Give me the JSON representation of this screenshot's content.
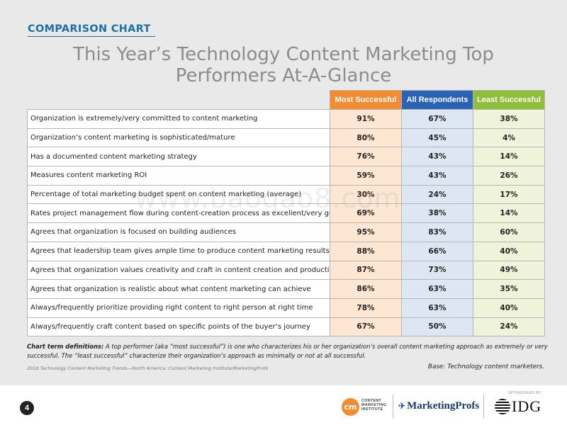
{
  "header": {
    "section_label": "COMPARISON CHART",
    "title": "This Year’s Technology Content Marketing Top Performers At-A-Glance"
  },
  "table": {
    "columns": [
      "Most Successful",
      "All Respondents",
      "Least Successful"
    ],
    "column_colors": {
      "most_successful": "#f28c33",
      "all_respondents": "#2a63b5",
      "least_successful": "#8fbe3a"
    },
    "rows": [
      {
        "statement": "Organization is extremely/very committed to content marketing",
        "most": "91%",
        "all": "67%",
        "least": "38%"
      },
      {
        "statement": "Organization’s content marketing is sophisticated/mature",
        "most": "80%",
        "all": "45%",
        "least": "4%"
      },
      {
        "statement": "Has a documented content marketing strategy",
        "most": "76%",
        "all": "43%",
        "least": "14%"
      },
      {
        "statement": "Measures content marketing ROI",
        "most": "59%",
        "all": "43%",
        "least": "26%"
      },
      {
        "statement": "Percentage of total marketing budget spent on content marketing (average)",
        "most": "30%",
        "all": "24%",
        "least": "17%"
      },
      {
        "statement": "Rates project management flow during content-creation process as excellent/very good",
        "most": "69%",
        "all": "38%",
        "least": "14%"
      },
      {
        "statement": "Agrees that organization is focused on building audiences",
        "most": "95%",
        "all": "83%",
        "least": "60%"
      },
      {
        "statement": "Agrees that leadership team gives ample time to produce content marketing results",
        "most": "88%",
        "all": "66%",
        "least": "40%"
      },
      {
        "statement": "Agrees that organization values creativity and craft in content creation and production",
        "most": "87%",
        "all": "73%",
        "least": "49%"
      },
      {
        "statement": "Agrees that organization is realistic about what content marketing can achieve",
        "most": "86%",
        "all": "63%",
        "least": "35%"
      },
      {
        "statement": "Always/frequently prioritize providing right content to right person at right time",
        "most": "78%",
        "all": "63%",
        "least": "40%"
      },
      {
        "statement": "Always/frequently craft content based on specific points of the buyer’s journey",
        "most": "67%",
        "all": "50%",
        "least": "24%"
      }
    ]
  },
  "notes": {
    "definitions_label": "Chart term definitions:",
    "definitions_text": " A top performer (aka “most successful”) is one who characterizes his or her organization’s overall content marketing approach as extremely or very successful. The “least successful” characterize their organization’s approach as minimally or not at all successful.",
    "source": "2018 Technology Content Marketing Trends—North America: Content Marketing Institute/MarketingProfs",
    "base": "Base: Technology content marketers."
  },
  "footer": {
    "page_number": "4",
    "cmi_mark": "cm",
    "cmi_line1": "CONTENT",
    "cmi_line2": "MARKETING",
    "cmi_line3": "INSTITUTE",
    "mp_logo": "MarketingProfs",
    "sponsored_by": "SPONSORED BY",
    "idg_logo": "IDG"
  },
  "watermark": "www.baogao8.com",
  "icons": {
    "mp_bird": "bird-icon",
    "idg_globe": "globe-icon"
  }
}
